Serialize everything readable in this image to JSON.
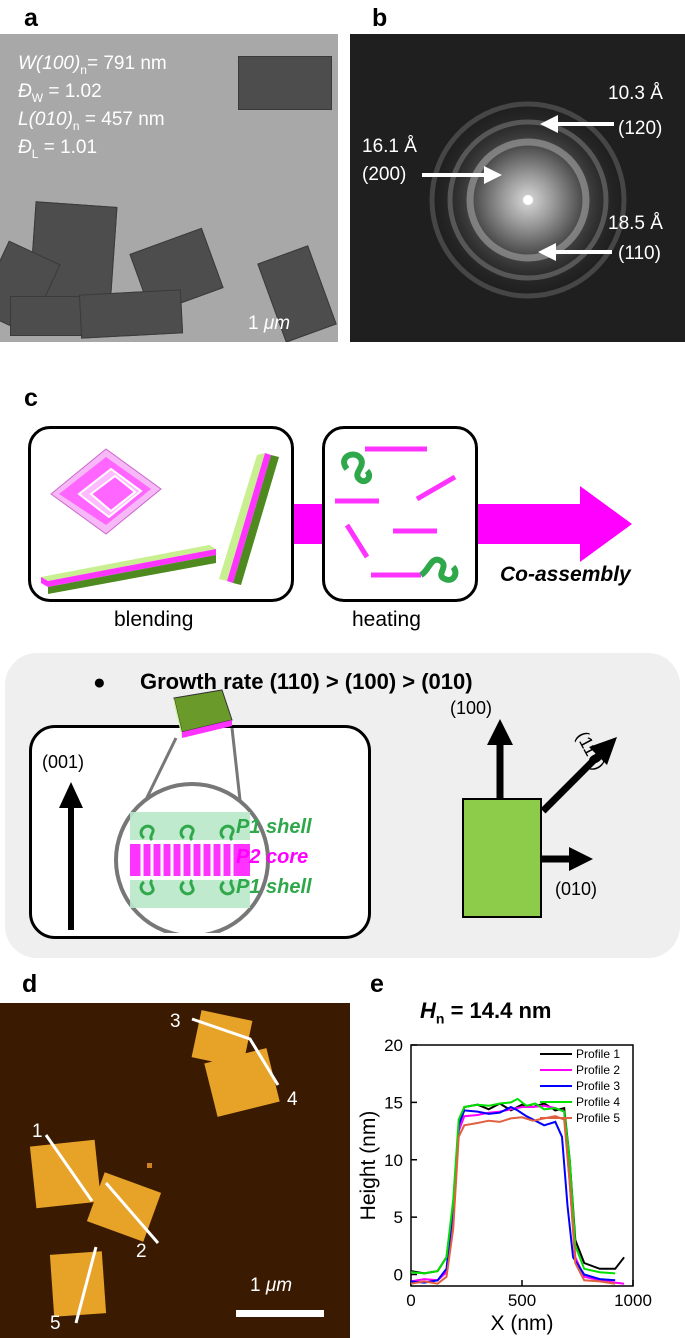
{
  "panels": {
    "a": "a",
    "b": "b",
    "c": "c",
    "d": "d",
    "e": "e"
  },
  "panel_a": {
    "w_label": "W(100)",
    "w_sub": "n",
    "w_value": "= 791 nm",
    "dw_label": "Đ",
    "dw_sub": "W",
    "dw_value": " = 1.02",
    "l_label": "L(010)",
    "l_sub": "n",
    "l_value": " = 457 nm",
    "dl_label": "Đ",
    "dl_sub": "L",
    "dl_value": " = 1.01",
    "scale_num": "1 ",
    "scale_unit": "μm"
  },
  "panel_b": {
    "d1": "10.3 Å",
    "h1": "(120)",
    "d2": "16.1 Å",
    "h2": "(200)",
    "d3": "18.5 Å",
    "h3": "(110)"
  },
  "panel_c": {
    "blending": "blending",
    "heating": "heating",
    "coassembly": "Co-assembly",
    "growth_bullet": "●",
    "growth_rate": "Growth rate (110) > (100) > (010)",
    "axis_001": "(001)",
    "p1_shell_top": "P1 shell",
    "p2_core": "P2 core",
    "p1_shell_bottom": "P1 shell",
    "dir_100": "(100)",
    "dir_110": "(110)",
    "dir_010": "(010)",
    "colors": {
      "magenta": "#ff00ff",
      "green": "#2e9e3e",
      "olive": "#6a9a2a",
      "lightgreen": "#8dcc4a"
    }
  },
  "panel_d": {
    "labels": [
      "1",
      "2",
      "3",
      "4",
      "5"
    ],
    "scale_num": "1 ",
    "scale_unit": "μm"
  },
  "panel_e": {
    "title_h": "H",
    "title_sub": "n",
    "title_value": " = 14.4 nm"
  },
  "chart_data": {
    "type": "line",
    "title": "Hn = 14.4 nm",
    "xlabel": "X (nm)",
    "ylabel": "Height (nm)",
    "xlim": [
      0,
      1000
    ],
    "ylim": [
      -1,
      20
    ],
    "xticks": [
      0,
      500,
      1000
    ],
    "yticks": [
      0,
      5,
      10,
      15,
      20
    ],
    "legend_position": "top-right",
    "series": [
      {
        "name": "Profile 1",
        "color": "#000000",
        "x": [
          0,
          60,
          120,
          160,
          190,
          215,
          240,
          300,
          350,
          400,
          450,
          500,
          550,
          600,
          650,
          690,
          715,
          740,
          780,
          850,
          920,
          960
        ],
        "y": [
          0.3,
          0.1,
          0.3,
          1.5,
          6,
          13,
          14.6,
          14.8,
          14.4,
          14.9,
          14.3,
          14.8,
          14.6,
          14.9,
          14.3,
          14.5,
          10,
          3,
          1,
          0.5,
          0.5,
          1.5
        ]
      },
      {
        "name": "Profile 2",
        "color": "#ff00ff",
        "x": [
          0,
          60,
          120,
          160,
          190,
          215,
          240,
          300,
          350,
          400,
          450,
          500,
          550,
          600,
          650,
          690,
          715,
          740,
          780,
          850,
          920,
          960
        ],
        "y": [
          -0.6,
          -0.4,
          -0.5,
          0.2,
          5,
          12.5,
          13.8,
          13.9,
          14.1,
          14.2,
          14.4,
          14.6,
          14.6,
          14.7,
          14.5,
          14.2,
          8,
          1.5,
          -0.2,
          -0.5,
          -0.7,
          -0.8
        ]
      },
      {
        "name": "Profile 3",
        "color": "#0000ff",
        "x": [
          0,
          60,
          120,
          160,
          190,
          215,
          240,
          300,
          350,
          400,
          450,
          480,
          520,
          560,
          600,
          650,
          680,
          705,
          730,
          780,
          850,
          920
        ],
        "y": [
          -0.6,
          -0.7,
          -0.5,
          0.5,
          6,
          13,
          14.3,
          14.2,
          14.0,
          14.1,
          14.6,
          14.3,
          13.8,
          13.4,
          13.0,
          13.3,
          12.0,
          6,
          1.5,
          0.0,
          -0.4,
          -0.5
        ]
      },
      {
        "name": "Profile 4",
        "color": "#00e000",
        "x": [
          0,
          60,
          120,
          160,
          190,
          215,
          240,
          300,
          350,
          400,
          450,
          480,
          520,
          560,
          600,
          650,
          690,
          715,
          740,
          780,
          850,
          920
        ],
        "y": [
          0.2,
          0.1,
          0.3,
          1.5,
          6.5,
          13.5,
          14.6,
          14.8,
          14.7,
          14.9,
          15.0,
          15.3,
          14.7,
          14.9,
          14.4,
          14.5,
          14.2,
          10,
          2.5,
          0.5,
          0.2,
          0.1
        ]
      },
      {
        "name": "Profile 5",
        "color": "#e06040",
        "x": [
          0,
          60,
          120,
          160,
          190,
          215,
          240,
          300,
          350,
          400,
          450,
          500,
          550,
          600,
          650,
          690,
          715,
          740,
          780,
          850,
          920
        ],
        "y": [
          -0.8,
          -0.6,
          -0.8,
          -0.2,
          4,
          12,
          13.0,
          13.2,
          13.4,
          13.3,
          13.6,
          13.7,
          13.4,
          13.6,
          13.8,
          13.5,
          8,
          1,
          -0.5,
          -0.6,
          -0.8
        ]
      }
    ]
  }
}
